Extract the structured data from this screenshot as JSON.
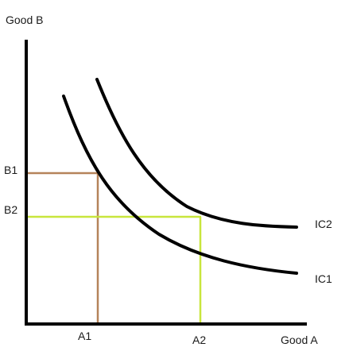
{
  "axes": {
    "y_label": "Good B",
    "x_label": "Good A"
  },
  "ticks": {
    "b1": "B1",
    "b2": "B2",
    "a1": "A1",
    "a2": "A2"
  },
  "curves": {
    "ic1": "IC1",
    "ic2": "IC2"
  },
  "colors": {
    "axis": "#000000",
    "curve": "#000000",
    "bundle1": "#b5835a",
    "bundle2": "#c8e63c"
  }
}
